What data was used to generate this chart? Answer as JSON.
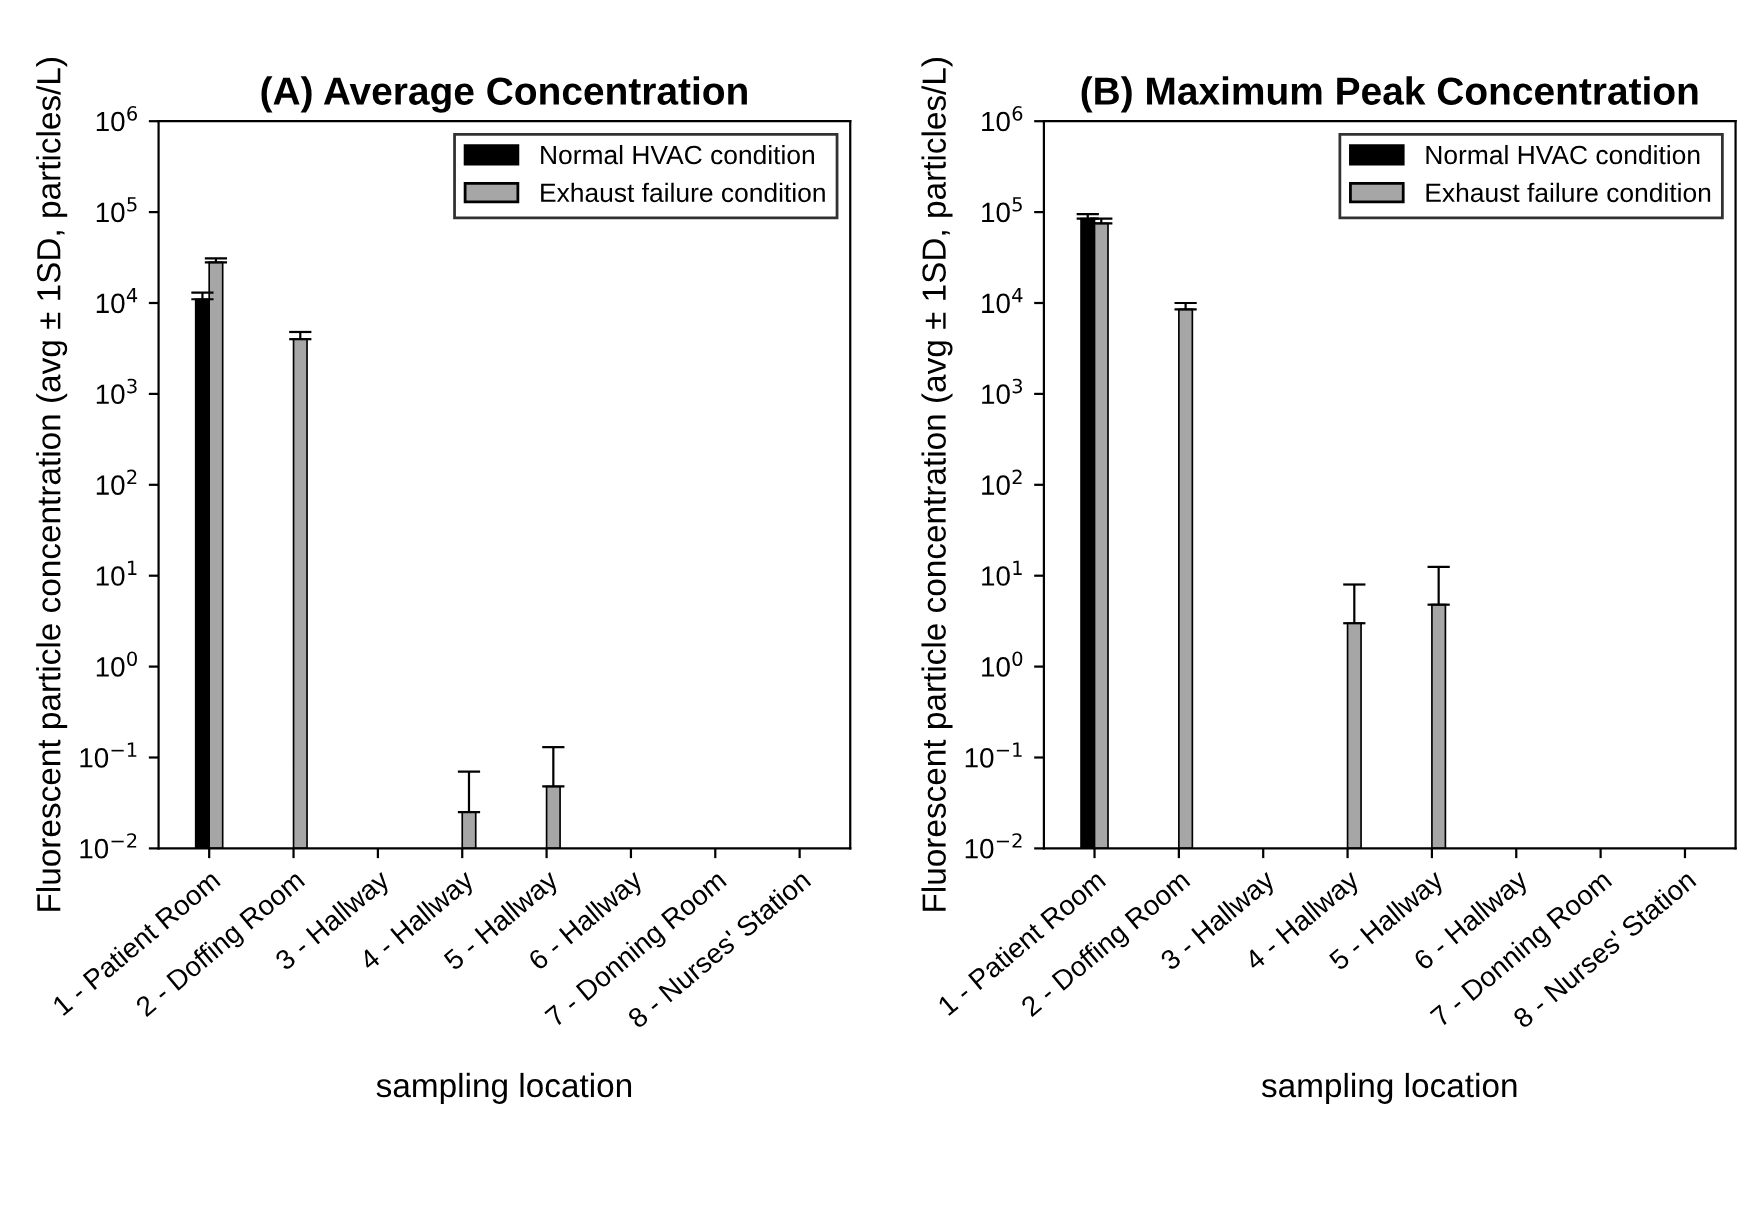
{
  "chart_data": [
    {
      "type": "bar",
      "title": "(A) Average Concentration",
      "xlabel": "sampling location",
      "ylabel": "Fluorescent particle concentration (avg ± 1SD, particles/L)",
      "categories": [
        "1 - Patient Room",
        "2 - Doffing Room",
        "3 - Hallway",
        "4 - Hallway",
        "5 - Hallway",
        "6 - Hallway",
        "7 - Donning Room",
        "8 - Nurses' Station"
      ],
      "series": [
        {
          "name": "Normal HVAC condition",
          "color": "#000000",
          "values": [
            11000,
            null,
            null,
            null,
            null,
            null,
            null,
            null
          ],
          "errors": [
            [
              11000,
              13000
            ],
            null,
            null,
            null,
            null,
            null,
            null,
            null
          ]
        },
        {
          "name": "Exhaust failure condition",
          "color": "#a6a6a6",
          "values": [
            28000,
            4000,
            null,
            0.025,
            0.048,
            null,
            null,
            null
          ],
          "errors": [
            [
              28000,
              31000
            ],
            [
              4000,
              4800
            ],
            null,
            [
              0.025,
              0.07
            ],
            [
              0.048,
              0.13
            ],
            null,
            null,
            null
          ]
        }
      ],
      "log": "y",
      "ylim": [
        0.01,
        1000000
      ],
      "yticks": [
        {
          "value": 0.01,
          "label": "10$^{−2}$"
        },
        {
          "value": 0.1,
          "label": "10$^{−1}$"
        },
        {
          "value": 1,
          "label": "10$^{0}$"
        },
        {
          "value": 10,
          "label": "10$^{1}$"
        },
        {
          "value": 100,
          "label": "10$^{2}$"
        },
        {
          "value": 1000,
          "label": "10$^{3}$"
        },
        {
          "value": 10000,
          "label": "10$^{4}$"
        },
        {
          "value": 100000,
          "label": "10$^{5}$"
        },
        {
          "value": 1000000,
          "label": "10$^{6}$"
        }
      ],
      "legend": "top right",
      "grid": false
    },
    {
      "type": "bar",
      "title": "(B) Maximum Peak Concentration",
      "xlabel": "sampling location",
      "ylabel": "Fluorescent particle concentration (avg ± 1SD, particles/L)",
      "categories": [
        "1 - Patient Room",
        "2 - Doffing Room",
        "3 - Hallway",
        "4 - Hallway",
        "5 - Hallway",
        "6 - Hallway",
        "7 - Donning Room",
        "8 - Nurses' Station"
      ],
      "series": [
        {
          "name": "Normal HVAC condition",
          "color": "#000000",
          "values": [
            85000,
            null,
            null,
            null,
            null,
            null,
            null,
            null
          ],
          "errors": [
            [
              85000,
              95000
            ],
            null,
            null,
            null,
            null,
            null,
            null,
            null
          ]
        },
        {
          "name": "Exhaust failure condition",
          "color": "#a6a6a6",
          "values": [
            75000,
            8500,
            null,
            3,
            4.8,
            null,
            null,
            null
          ],
          "errors": [
            [
              75000,
              85000
            ],
            [
              8500,
              10000
            ],
            null,
            [
              3,
              8
            ],
            [
              4.8,
              12.5
            ],
            null,
            null,
            null
          ]
        }
      ],
      "log": "y",
      "ylim": [
        0.01,
        1000000
      ],
      "yticks": [
        {
          "value": 0.01,
          "label": "10$^{−2}$"
        },
        {
          "value": 0.1,
          "label": "10$^{−1}$"
        },
        {
          "value": 1,
          "label": "10$^{0}$"
        },
        {
          "value": 10,
          "label": "10$^{1}$"
        },
        {
          "value": 100,
          "label": "10$^{2}$"
        },
        {
          "value": 1000,
          "label": "10$^{3}$"
        },
        {
          "value": 10000,
          "label": "10$^{4}$"
        },
        {
          "value": 100000,
          "label": "10$^{5}$"
        },
        {
          "value": 1000000,
          "label": "10$^{6}$"
        }
      ],
      "legend": "top right",
      "grid": false
    }
  ]
}
